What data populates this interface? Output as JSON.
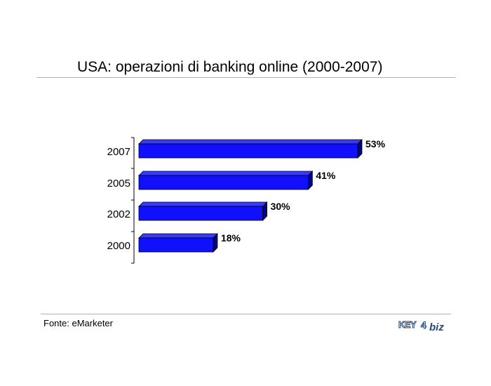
{
  "header": {
    "title": "USA: operazioni di banking online (2000-2007)"
  },
  "footer": {
    "source": "Fonte: eMarketer",
    "logo_text": "KEY4biz"
  },
  "colors": {
    "bar_front": "#1010ff",
    "bar_top": "#3a3aff",
    "bar_side": "#00008b",
    "rule": "#b3b3b3"
  },
  "chart_data": {
    "type": "bar",
    "orientation": "horizontal",
    "categories": [
      "2007",
      "2005",
      "2002",
      "2000"
    ],
    "values": [
      53,
      41,
      30,
      18
    ],
    "data_labels": [
      "53%",
      "41%",
      "30%",
      "18%"
    ],
    "title": "USA: operazioni di banking online (2000-2007)",
    "xlabel": "",
    "ylabel": "",
    "xlim": [
      0,
      53
    ],
    "grid": false,
    "legend": "none"
  }
}
